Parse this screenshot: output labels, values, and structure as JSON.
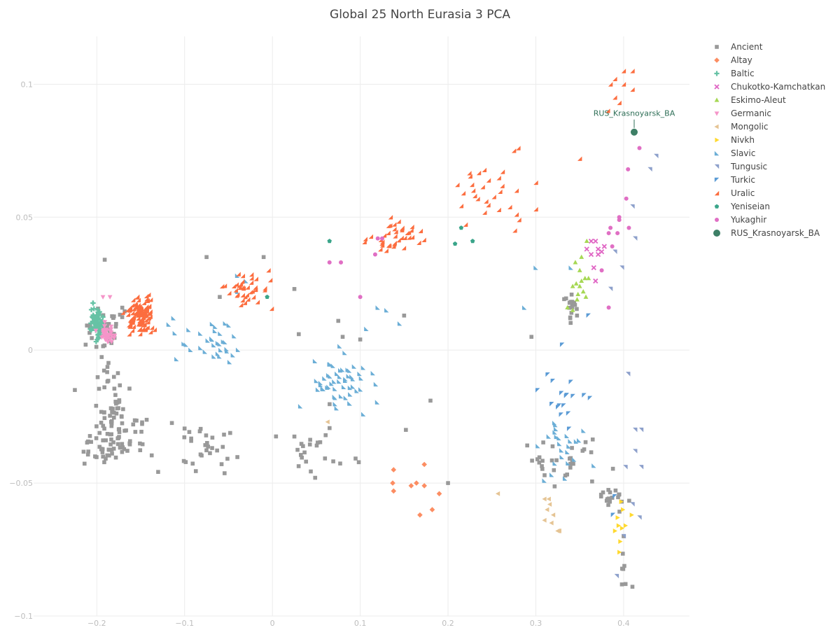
{
  "chart_data": {
    "type": "scatter",
    "title": "Global 25 North Eurasia 3 PCA",
    "xlabel": "",
    "ylabel": "",
    "xlim": [
      -0.272,
      0.475
    ],
    "ylim": [
      -0.1,
      0.118
    ],
    "x_ticks": [
      -0.2,
      -0.1,
      0,
      0.1,
      0.2,
      0.3,
      0.4
    ],
    "x_tick_labels": [
      "−0.2",
      "−0.1",
      "0",
      "0.1",
      "0.2",
      "0.3",
      "0.4"
    ],
    "y_ticks": [
      -0.1,
      -0.05,
      0,
      0.05,
      0.1
    ],
    "y_tick_labels": [
      "−0.1",
      "−0.05",
      "0",
      "0.05",
      "0.1"
    ],
    "grid": true,
    "legend_position": "right",
    "series": [
      {
        "name": "Ancient",
        "color": "#999999",
        "marker": "square",
        "cluster_regions": [
          {
            "center": [
              -0.19,
              0.008
            ],
            "spread": [
              0.025,
              0.01
            ],
            "count": 40
          },
          {
            "center": [
              -0.185,
              -0.02
            ],
            "spread": [
              0.02,
              0.012
            ],
            "count": 40
          },
          {
            "center": [
              -0.2,
              -0.035
            ],
            "spread": [
              0.025,
              0.007
            ],
            "count": 35
          },
          {
            "center": [
              -0.16,
              -0.032
            ],
            "spread": [
              0.03,
              0.01
            ],
            "count": 40
          },
          {
            "center": [
              -0.08,
              -0.035
            ],
            "spread": [
              0.04,
              0.012
            ],
            "count": 30
          },
          {
            "center": [
              0.05,
              -0.04
            ],
            "spread": [
              0.04,
              0.012
            ],
            "count": 25
          },
          {
            "center": [
              0.33,
              -0.04
            ],
            "spread": [
              0.04,
              0.008
            ],
            "count": 30
          },
          {
            "center": [
              0.385,
              -0.055
            ],
            "spread": [
              0.02,
              0.006
            ],
            "count": 20
          },
          {
            "center": [
              0.4,
              -0.082
            ],
            "spread": [
              0.005,
              0.005
            ],
            "count": 6
          },
          {
            "center": [
              0.34,
              0.016
            ],
            "spread": [
              0.008,
              0.006
            ],
            "count": 18
          }
        ],
        "points": [
          [
            -0.191,
            0.034
          ],
          [
            -0.075,
            0.035
          ],
          [
            -0.01,
            0.035
          ],
          [
            -0.06,
            0.02
          ],
          [
            0.025,
            0.023
          ],
          [
            0.15,
            0.013
          ],
          [
            0.075,
            0.011
          ],
          [
            0.08,
            0.005
          ],
          [
            0.1,
            0.004
          ],
          [
            0.03,
            0.006
          ],
          [
            0.295,
            0.005
          ],
          [
            0.18,
            -0.019
          ],
          [
            0.152,
            -0.03
          ],
          [
            0.4,
            -0.07
          ],
          [
            0.41,
            -0.089
          ],
          [
            0.2,
            -0.05
          ],
          [
            -0.225,
            -0.015
          ]
        ]
      },
      {
        "name": "Altay",
        "color": "#fc8d62",
        "marker": "diamond",
        "points": [
          [
            0.138,
            -0.045
          ],
          [
            0.138,
            -0.053
          ],
          [
            0.137,
            -0.05
          ],
          [
            0.158,
            -0.051
          ],
          [
            0.164,
            -0.05
          ],
          [
            0.173,
            -0.051
          ],
          [
            0.173,
            -0.043
          ],
          [
            0.19,
            -0.054
          ],
          [
            0.168,
            -0.062
          ],
          [
            0.182,
            -0.06
          ]
        ]
      },
      {
        "name": "Baltic",
        "color": "#66c2a5",
        "marker": "cross",
        "cluster_regions": [
          {
            "center": [
              -0.2,
              0.011
            ],
            "spread": [
              0.007,
              0.006
            ],
            "count": 65
          }
        ],
        "points": []
      },
      {
        "name": "Chukotko-Kamchatkan",
        "color": "#e066c4",
        "marker": "x",
        "points": [
          [
            0.358,
            0.038
          ],
          [
            0.363,
            0.041
          ],
          [
            0.368,
            0.041
          ],
          [
            0.371,
            0.036
          ],
          [
            0.371,
            0.038
          ],
          [
            0.375,
            0.037
          ],
          [
            0.378,
            0.039
          ],
          [
            0.368,
            0.026
          ],
          [
            0.366,
            0.031
          ],
          [
            0.363,
            0.036
          ]
        ]
      },
      {
        "name": "Eskimo-Aleut",
        "color": "#a6d854",
        "marker": "triangle-up",
        "points": [
          [
            0.345,
            0.033
          ],
          [
            0.35,
            0.03
          ],
          [
            0.356,
            0.027
          ],
          [
            0.352,
            0.026
          ],
          [
            0.36,
            0.027
          ],
          [
            0.35,
            0.024
          ],
          [
            0.354,
            0.022
          ],
          [
            0.348,
            0.021
          ],
          [
            0.357,
            0.02
          ],
          [
            0.342,
            0.024
          ],
          [
            0.347,
            0.019
          ],
          [
            0.352,
            0.035
          ],
          [
            0.358,
            0.041
          ],
          [
            0.336,
            0.016
          ],
          [
            0.342,
            0.015
          ],
          [
            0.346,
            0.025
          ]
        ]
      },
      {
        "name": "Germanic",
        "color": "#f595c9",
        "marker": "triangle-down",
        "cluster_regions": [
          {
            "center": [
              -0.19,
              0.007
            ],
            "spread": [
              0.008,
              0.004
            ],
            "count": 40
          }
        ],
        "points": [
          [
            -0.193,
            0.02
          ],
          [
            -0.185,
            0.02
          ]
        ]
      },
      {
        "name": "Mongolic",
        "color": "#e5c494",
        "marker": "triangle-left",
        "points": [
          [
            0.063,
            -0.027
          ],
          [
            0.257,
            -0.054
          ],
          [
            0.31,
            -0.056
          ],
          [
            0.315,
            -0.056
          ],
          [
            0.313,
            -0.06
          ],
          [
            0.31,
            -0.064
          ],
          [
            0.318,
            -0.065
          ],
          [
            0.325,
            -0.068
          ],
          [
            0.326,
            -0.068
          ],
          [
            0.327,
            -0.068
          ],
          [
            0.32,
            -0.062
          ],
          [
            0.316,
            -0.058
          ]
        ]
      },
      {
        "name": "Nivkh",
        "color": "#ffd92f",
        "marker": "triangle-right",
        "points": [
          [
            0.397,
            -0.057
          ],
          [
            0.399,
            -0.06
          ],
          [
            0.393,
            -0.063
          ],
          [
            0.394,
            -0.066
          ],
          [
            0.398,
            -0.067
          ],
          [
            0.402,
            -0.066
          ],
          [
            0.39,
            -0.068
          ],
          [
            0.409,
            -0.062
          ],
          [
            0.395,
            -0.076
          ],
          [
            0.396,
            -0.072
          ]
        ]
      },
      {
        "name": "Slavic",
        "color": "#6baed6",
        "marker": "triangle-sw",
        "cluster_regions": [
          {
            "center": [
              -0.07,
              0.003
            ],
            "spread": [
              0.04,
              0.008
            ],
            "count": 35
          },
          {
            "center": [
              0.08,
              -0.013
            ],
            "spread": [
              0.035,
              0.01
            ],
            "count": 55
          },
          {
            "center": [
              0.33,
              -0.037
            ],
            "spread": [
              0.035,
              0.01
            ],
            "count": 25
          }
        ],
        "points": [
          [
            -0.04,
            0.022
          ],
          [
            -0.03,
            0.026
          ],
          [
            -0.04,
            0.028
          ],
          [
            0.13,
            0.015
          ],
          [
            0.12,
            0.016
          ],
          [
            0.107,
            0.008
          ],
          [
            0.145,
            0.01
          ],
          [
            0.287,
            0.016
          ],
          [
            0.3,
            0.031
          ],
          [
            0.34,
            0.031
          ]
        ]
      },
      {
        "name": "Tungusic",
        "color": "#8da0cb",
        "marker": "triangle-ne",
        "points": [
          [
            0.41,
            0.054
          ],
          [
            0.43,
            0.068
          ],
          [
            0.437,
            0.073
          ],
          [
            0.413,
            0.042
          ],
          [
            0.39,
            0.037
          ],
          [
            0.398,
            0.031
          ],
          [
            0.385,
            0.023
          ],
          [
            0.405,
            -0.009
          ],
          [
            0.413,
            -0.03
          ],
          [
            0.42,
            -0.03
          ],
          [
            0.413,
            -0.038
          ],
          [
            0.402,
            -0.044
          ],
          [
            0.42,
            -0.044
          ],
          [
            0.41,
            -0.058
          ],
          [
            0.418,
            -0.063
          ],
          [
            0.392,
            -0.085
          ],
          [
            0.4,
            -0.07
          ]
        ]
      },
      {
        "name": "Turkic",
        "color": "#5b9bd5",
        "marker": "triangle-nw",
        "cluster_regions": [
          {
            "center": [
              0.33,
              -0.02
            ],
            "spread": [
              0.03,
              0.008
            ],
            "count": 15
          }
        ],
        "points": [
          [
            0.36,
            0.013
          ],
          [
            0.33,
            0.002
          ],
          [
            0.34,
            -0.012
          ],
          [
            0.355,
            -0.017
          ],
          [
            0.39,
            -0.055
          ],
          [
            0.388,
            -0.062
          ]
        ]
      },
      {
        "name": "Uralic",
        "color": "#fc6d3f",
        "marker": "triangle-se",
        "cluster_regions": [
          {
            "center": [
              -0.15,
              0.013
            ],
            "spread": [
              0.015,
              0.006
            ],
            "count": 120
          },
          {
            "center": [
              -0.03,
              0.022
            ],
            "spread": [
              0.035,
              0.008
            ],
            "count": 40
          },
          {
            "center": [
              0.14,
              0.043
            ],
            "spread": [
              0.025,
              0.006
            ],
            "count": 40
          },
          {
            "center": [
              0.24,
              0.06
            ],
            "spread": [
              0.04,
              0.01
            ],
            "count": 25
          }
        ],
        "points": [
          [
            0.39,
            0.102
          ],
          [
            0.4,
            0.105
          ],
          [
            0.41,
            0.105
          ],
          [
            0.395,
            0.093
          ],
          [
            0.4,
            0.1
          ],
          [
            0.385,
            0.1
          ],
          [
            0.39,
            0.095
          ],
          [
            0.382,
            0.09
          ],
          [
            0.41,
            0.098
          ],
          [
            0.35,
            0.072
          ],
          [
            0.275,
            0.075
          ],
          [
            0.28,
            0.076
          ],
          [
            0.3,
            0.063
          ],
          [
            0.3,
            0.053
          ],
          [
            0.278,
            0.06
          ],
          [
            0.278,
            0.051
          ],
          [
            0.276,
            0.045
          ]
        ]
      },
      {
        "name": "Yeniseian",
        "color": "#3aa58a",
        "marker": "pentagon",
        "points": [
          [
            0.065,
            0.041
          ],
          [
            0.215,
            0.046
          ],
          [
            0.208,
            0.04
          ],
          [
            0.228,
            0.041
          ],
          [
            -0.006,
            0.02
          ]
        ]
      },
      {
        "name": "Yukaghir",
        "color": "#e06fc4",
        "marker": "circle",
        "points": [
          [
            0.418,
            0.076
          ],
          [
            0.405,
            0.068
          ],
          [
            0.403,
            0.057
          ],
          [
            0.395,
            0.05
          ],
          [
            0.395,
            0.049
          ],
          [
            0.385,
            0.046
          ],
          [
            0.383,
            0.044
          ],
          [
            0.393,
            0.044
          ],
          [
            0.406,
            0.046
          ],
          [
            0.387,
            0.039
          ],
          [
            0.383,
            0.016
          ],
          [
            0.375,
            0.03
          ],
          [
            0.065,
            0.033
          ],
          [
            0.078,
            0.033
          ],
          [
            0.1,
            0.02
          ],
          [
            0.12,
            0.042
          ],
          [
            0.125,
            0.042
          ],
          [
            0.117,
            0.036
          ]
        ]
      },
      {
        "name": "RUS_Krasnoyarsk_BA",
        "color": "#3d7f66",
        "marker": "big-circle",
        "points": [
          [
            0.412,
            0.082
          ]
        ]
      }
    ],
    "annotations": [
      {
        "text": "RUS_Krasnoyarsk_BA",
        "x": 0.412,
        "y": 0.082,
        "color": "#2f6f57"
      }
    ]
  }
}
